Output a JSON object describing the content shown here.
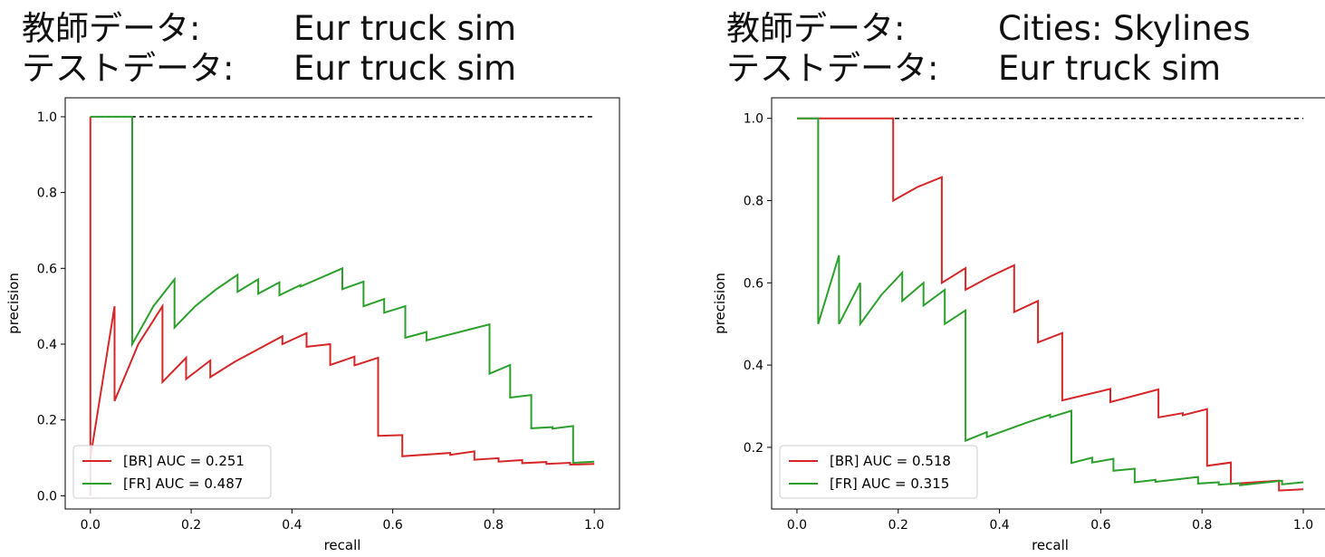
{
  "panels": [
    {
      "train_label": "教師データ:",
      "train_value": "Eur truck sim",
      "test_label": "テストデータ:",
      "test_value": "Eur truck sim"
    },
    {
      "train_label": "教師データ:",
      "train_value": "Cities: Skylines",
      "test_label": "テストデータ:",
      "test_value": "Eur truck sim"
    }
  ],
  "chart_data": [
    {
      "type": "line",
      "xlabel": "recall",
      "ylabel": "precision",
      "xlim": [
        -0.05,
        1.05
      ],
      "ylim": [
        -0.035,
        1.05
      ],
      "xticks": [
        "0.0",
        "0.2",
        "0.4",
        "0.6",
        "0.8",
        "1.0"
      ],
      "yticks": [
        "0.0",
        "0.2",
        "0.4",
        "0.6",
        "0.8",
        "1.0"
      ],
      "legend_position": "lower-left",
      "baseline": {
        "y": 1.0,
        "x_range": [
          0,
          1
        ],
        "style": "dashed",
        "color": "#000000"
      },
      "series": [
        {
          "name": "[BR] AUC = 0.251",
          "color": "#d62728",
          "points": [
            [
              0,
              0
            ],
            [
              0,
              1
            ],
            [
              0,
              0.1
            ],
            [
              0.048,
              0.5
            ],
            [
              0.048,
              0.25
            ],
            [
              0.095,
              0.4
            ],
            [
              0.143,
              0.5
            ],
            [
              0.143,
              0.3
            ],
            [
              0.19,
              0.364
            ],
            [
              0.19,
              0.308
            ],
            [
              0.238,
              0.357
            ],
            [
              0.238,
              0.313
            ],
            [
              0.286,
              0.353
            ],
            [
              0.381,
              0.421
            ],
            [
              0.381,
              0.4
            ],
            [
              0.429,
              0.429
            ],
            [
              0.429,
              0.393
            ],
            [
              0.476,
              0.4
            ],
            [
              0.476,
              0.345
            ],
            [
              0.524,
              0.367
            ],
            [
              0.524,
              0.344
            ],
            [
              0.571,
              0.364
            ],
            [
              0.571,
              0.158
            ],
            [
              0.619,
              0.16
            ],
            [
              0.619,
              0.104
            ],
            [
              0.714,
              0.113
            ],
            [
              0.714,
              0.108
            ],
            [
              0.762,
              0.117
            ],
            [
              0.762,
              0.095
            ],
            [
              0.81,
              0.099
            ],
            [
              0.81,
              0.09
            ],
            [
              0.857,
              0.094
            ],
            [
              0.857,
              0.086
            ],
            [
              0.905,
              0.089
            ],
            [
              0.905,
              0.084
            ],
            [
              0.952,
              0.087
            ],
            [
              0.952,
              0.082
            ],
            [
              1.0,
              0.084
            ]
          ]
        },
        {
          "name": "[FR] AUC = 0.487",
          "color": "#2ca02c",
          "points": [
            [
              0,
              1
            ],
            [
              0.083,
              1
            ],
            [
              0.083,
              0.4
            ],
            [
              0.125,
              0.5
            ],
            [
              0.167,
              0.571
            ],
            [
              0.167,
              0.444
            ],
            [
              0.208,
              0.5
            ],
            [
              0.25,
              0.545
            ],
            [
              0.292,
              0.583
            ],
            [
              0.292,
              0.538
            ],
            [
              0.333,
              0.571
            ],
            [
              0.333,
              0.533
            ],
            [
              0.375,
              0.563
            ],
            [
              0.375,
              0.529
            ],
            [
              0.417,
              0.556
            ],
            [
              0.417,
              0.552
            ],
            [
              0.5,
              0.6
            ],
            [
              0.5,
              0.545
            ],
            [
              0.542,
              0.565
            ],
            [
              0.542,
              0.5
            ],
            [
              0.583,
              0.519
            ],
            [
              0.583,
              0.483
            ],
            [
              0.625,
              0.5
            ],
            [
              0.625,
              0.417
            ],
            [
              0.667,
              0.432
            ],
            [
              0.667,
              0.41
            ],
            [
              0.792,
              0.452
            ],
            [
              0.792,
              0.322
            ],
            [
              0.833,
              0.345
            ],
            [
              0.833,
              0.259
            ],
            [
              0.875,
              0.266
            ],
            [
              0.875,
              0.178
            ],
            [
              0.917,
              0.181
            ],
            [
              0.917,
              0.177
            ],
            [
              0.958,
              0.184
            ],
            [
              0.958,
              0.087
            ],
            [
              1.0,
              0.09
            ]
          ]
        }
      ]
    },
    {
      "type": "line",
      "xlabel": "recall",
      "ylabel": "precision",
      "xlim": [
        -0.05,
        1.05
      ],
      "ylim": [
        0.05,
        1.05
      ],
      "xticks": [
        "0.0",
        "0.2",
        "0.4",
        "0.6",
        "0.8",
        "1.0"
      ],
      "yticks": [
        "0.2",
        "0.4",
        "0.6",
        "0.8",
        "1.0"
      ],
      "legend_position": "lower-left",
      "baseline": {
        "y": 1.0,
        "x_range": [
          0,
          1
        ],
        "style": "dashed",
        "color": "#000000"
      },
      "series": [
        {
          "name": "[BR] AUC = 0.518",
          "color": "#d62728",
          "points": [
            [
              0,
              1
            ],
            [
              0.19,
              1
            ],
            [
              0.19,
              0.8
            ],
            [
              0.238,
              0.833
            ],
            [
              0.286,
              0.857
            ],
            [
              0.286,
              0.6
            ],
            [
              0.333,
              0.636
            ],
            [
              0.333,
              0.583
            ],
            [
              0.381,
              0.615
            ],
            [
              0.429,
              0.643
            ],
            [
              0.429,
              0.529
            ],
            [
              0.476,
              0.556
            ],
            [
              0.476,
              0.455
            ],
            [
              0.524,
              0.478
            ],
            [
              0.524,
              0.314
            ],
            [
              0.619,
              0.342
            ],
            [
              0.619,
              0.31
            ],
            [
              0.714,
              0.341
            ],
            [
              0.714,
              0.273
            ],
            [
              0.762,
              0.283
            ],
            [
              0.762,
              0.278
            ],
            [
              0.81,
              0.293
            ],
            [
              0.81,
              0.155
            ],
            [
              0.857,
              0.163
            ],
            [
              0.857,
              0.111
            ],
            [
              0.952,
              0.119
            ],
            [
              0.952,
              0.095
            ],
            [
              1.0,
              0.098
            ]
          ]
        },
        {
          "name": "[FR] AUC = 0.315",
          "color": "#2ca02c",
          "points": [
            [
              0,
              1
            ],
            [
              0.042,
              1
            ],
            [
              0.042,
              0.5
            ],
            [
              0.083,
              0.667
            ],
            [
              0.083,
              0.5
            ],
            [
              0.125,
              0.6
            ],
            [
              0.125,
              0.5
            ],
            [
              0.167,
              0.571
            ],
            [
              0.208,
              0.625
            ],
            [
              0.208,
              0.556
            ],
            [
              0.25,
              0.6
            ],
            [
              0.25,
              0.545
            ],
            [
              0.292,
              0.583
            ],
            [
              0.292,
              0.5
            ],
            [
              0.333,
              0.533
            ],
            [
              0.333,
              0.216
            ],
            [
              0.375,
              0.237
            ],
            [
              0.375,
              0.225
            ],
            [
              0.458,
              0.262
            ],
            [
              0.5,
              0.279
            ],
            [
              0.5,
              0.273
            ],
            [
              0.542,
              0.289
            ],
            [
              0.542,
              0.162
            ],
            [
              0.583,
              0.175
            ],
            [
              0.583,
              0.163
            ],
            [
              0.625,
              0.172
            ],
            [
              0.625,
              0.143
            ],
            [
              0.667,
              0.148
            ],
            [
              0.667,
              0.115
            ],
            [
              0.708,
              0.121
            ],
            [
              0.708,
              0.116
            ],
            [
              0.792,
              0.128
            ],
            [
              0.792,
              0.112
            ],
            [
              0.833,
              0.115
            ],
            [
              0.833,
              0.109
            ],
            [
              0.875,
              0.113
            ],
            [
              0.875,
              0.108
            ],
            [
              0.958,
              0.119
            ],
            [
              0.958,
              0.11
            ],
            [
              1.0,
              0.115
            ]
          ]
        }
      ]
    }
  ]
}
